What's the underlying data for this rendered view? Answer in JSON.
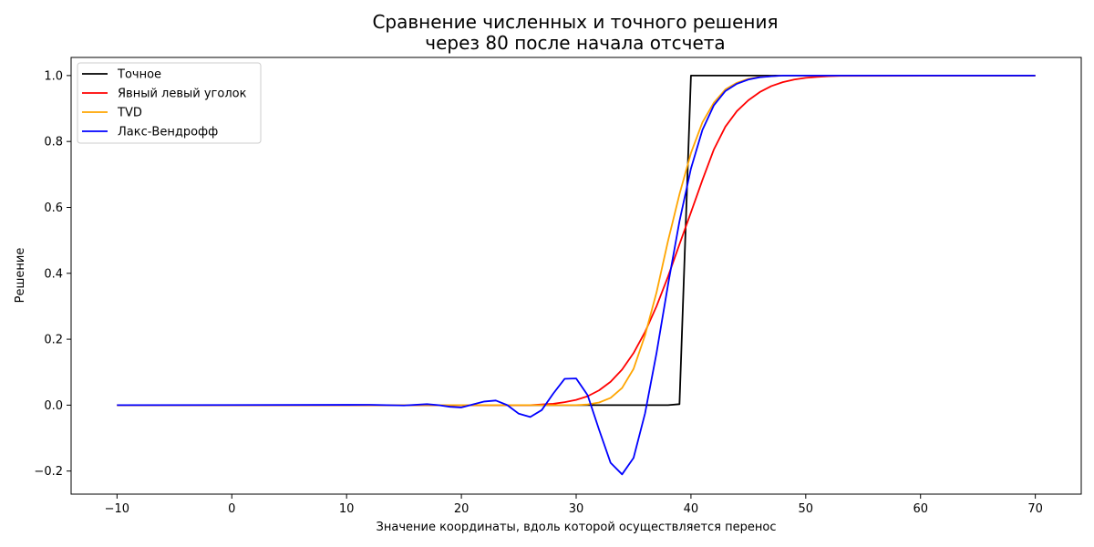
{
  "chart_data": {
    "type": "line",
    "title": [
      "Сравнение численных и точного решения",
      "через 80 после начала отсчета"
    ],
    "xlabel": "Значение координаты, вдоль которой осуществляется перенос",
    "ylabel": "Решение",
    "xlim": [
      -14,
      74
    ],
    "ylim": [
      -0.27,
      1.055
    ],
    "xticks": [
      -10,
      0,
      10,
      20,
      30,
      40,
      50,
      60,
      70
    ],
    "xtick_labels": [
      "−10",
      "0",
      "10",
      "20",
      "30",
      "40",
      "50",
      "60",
      "70"
    ],
    "yticks": [
      -0.2,
      0.0,
      0.2,
      0.4,
      0.6,
      0.8,
      1.0
    ],
    "ytick_labels": [
      "−0.2",
      "0.0",
      "0.2",
      "0.4",
      "0.6",
      "0.8",
      "1.0"
    ],
    "grid": false,
    "legend_position": "upper-left",
    "series": [
      {
        "name": "Точное",
        "color": "#000000",
        "x": [
          -10,
          38,
          39,
          40,
          70
        ],
        "y": [
          0.0,
          0.0,
          0.003,
          1.0,
          1.0
        ]
      },
      {
        "name": "Явный левый уголок",
        "color": "#ff0000",
        "x": [
          -10,
          26,
          28,
          29,
          30,
          31,
          32,
          33,
          34,
          35,
          36,
          37,
          38,
          39,
          40,
          41,
          42,
          43,
          44,
          45,
          46,
          47,
          48,
          49,
          50,
          51,
          52,
          53,
          70
        ],
        "y": [
          0.0,
          0.0,
          0.004,
          0.009,
          0.016,
          0.027,
          0.045,
          0.071,
          0.108,
          0.158,
          0.222,
          0.3,
          0.39,
          0.488,
          0.585,
          0.683,
          0.776,
          0.845,
          0.892,
          0.925,
          0.95,
          0.968,
          0.98,
          0.988,
          0.993,
          0.996,
          0.998,
          0.999,
          1.0
        ]
      },
      {
        "name": "TVD",
        "color": "#ffa500",
        "x": [
          -10,
          30,
          31,
          32,
          33,
          34,
          35,
          36,
          37,
          38,
          39,
          40,
          41,
          42,
          43,
          44,
          45,
          46,
          47,
          48,
          70
        ],
        "y": [
          0.0,
          0.0,
          0.002,
          0.008,
          0.022,
          0.052,
          0.11,
          0.212,
          0.342,
          0.498,
          0.64,
          0.765,
          0.858,
          0.918,
          0.958,
          0.978,
          0.99,
          0.996,
          0.998,
          1.0,
          1.0
        ]
      },
      {
        "name": "Лакс-Вендрофф",
        "color": "#0000ff",
        "x": [
          -10,
          12,
          15,
          17,
          18,
          19,
          20,
          21,
          22,
          23,
          24,
          25,
          26,
          27,
          28,
          29,
          30,
          31,
          32,
          33,
          34,
          35,
          36,
          37,
          38,
          39,
          40,
          41,
          42,
          43,
          44,
          45,
          46,
          47,
          48,
          70
        ],
        "y": [
          0.0,
          0.001,
          -0.001,
          0.003,
          0.0,
          -0.005,
          -0.007,
          0.002,
          0.011,
          0.014,
          0.0,
          -0.026,
          -0.036,
          -0.015,
          0.035,
          0.08,
          0.081,
          0.03,
          -0.075,
          -0.175,
          -0.21,
          -0.16,
          -0.025,
          0.158,
          0.365,
          0.558,
          0.718,
          0.835,
          0.91,
          0.953,
          0.975,
          0.988,
          0.995,
          0.998,
          1.0,
          1.0
        ]
      }
    ]
  }
}
